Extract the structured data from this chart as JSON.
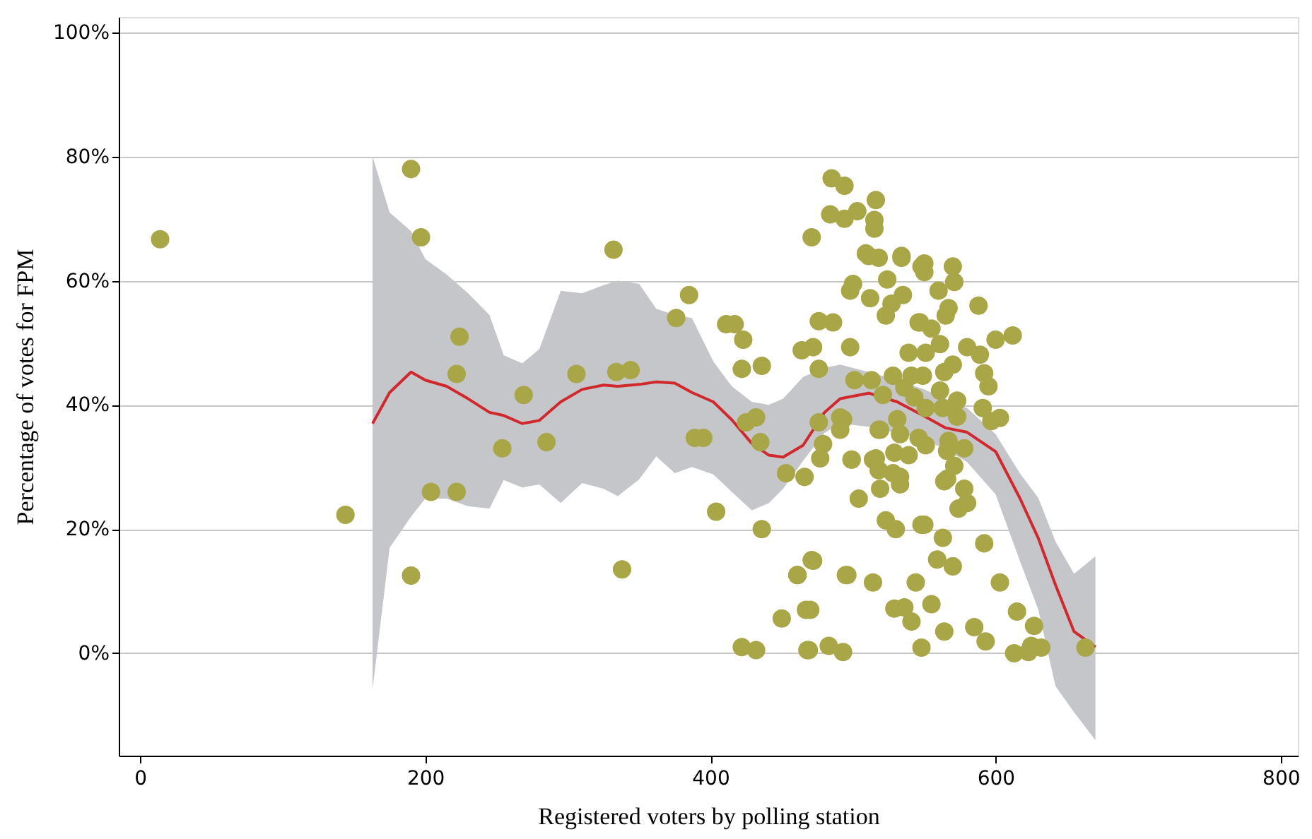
{
  "chart_data": {
    "type": "scatter",
    "xlabel": "Registered voters by polling station",
    "ylabel": "Percentage of votes for FPM",
    "xlim": [
      -15,
      812
    ],
    "ylim": [
      -16.5,
      102.5
    ],
    "xticks": [
      0,
      200,
      400,
      600,
      800
    ],
    "yticks": [
      {
        "value": 0,
        "label": "0%"
      },
      {
        "value": 20,
        "label": "20%"
      },
      {
        "value": 40,
        "label": "40%"
      },
      {
        "value": 60,
        "label": "60%"
      },
      {
        "value": 80,
        "label": "80%"
      },
      {
        "value": 100,
        "label": "100%"
      }
    ],
    "grid": "y",
    "series": [
      {
        "type": "line",
        "color": "#d0282c",
        "line_style": "solid",
        "x": [
          163,
          175,
          190,
          200,
          215,
          230,
          245,
          255,
          268,
          280,
          295,
          310,
          325,
          335,
          350,
          362,
          375,
          387,
          402,
          415,
          429,
          441,
          451,
          465,
          480,
          491,
          511,
          531,
          550,
          565,
          580,
          600,
          617,
          630,
          642,
          655,
          670
        ],
        "values": [
          37,
          42,
          45.3,
          44,
          43,
          41,
          38.8,
          38.3,
          37,
          37.5,
          40.5,
          42.5,
          43.2,
          43,
          43.3,
          43.7,
          43.5,
          42,
          40.5,
          37.6,
          33.8,
          31.9,
          31.6,
          33.5,
          38.8,
          41,
          41.9,
          40.5,
          38.2,
          36.3,
          35.6,
          32.5,
          25,
          18.5,
          11,
          3.5,
          1
        ],
        "lower": [
          -5.8,
          17,
          22,
          24.9,
          24.9,
          23.7,
          23.3,
          27.9,
          26.7,
          27.2,
          24.2,
          27.4,
          26.5,
          25.3,
          28,
          31.7,
          29,
          30,
          28.8,
          26,
          23,
          24.2,
          26.5,
          31,
          35.5,
          37,
          36.5,
          35.5,
          34.5,
          32.8,
          30.8,
          25.6,
          14.9,
          7,
          -5.3,
          -9.5,
          -14
        ],
        "upper": [
          80,
          71,
          68,
          63.5,
          61,
          58,
          54.5,
          48,
          46.7,
          49,
          58.4,
          58,
          59.3,
          60,
          59.5,
          55.5,
          54.5,
          54,
          47,
          43,
          40.5,
          40,
          41,
          44.5,
          46,
          46.5,
          45.3,
          44,
          42.5,
          41,
          39.5,
          35.3,
          29,
          25,
          18,
          12.8,
          15.6
        ]
      },
      {
        "color": "#a8a646",
        "marker": "circle",
        "x": [
          14,
          144,
          190,
          197,
          190,
          204,
          224,
          222,
          222,
          254,
          269,
          285,
          306,
          332,
          334,
          344,
          338,
          376,
          385,
          389,
          395,
          404,
          411,
          417,
          423,
          422,
          436,
          425,
          432,
          436,
          422,
          432,
          450,
          461,
          467,
          469,
          471,
          466,
          471,
          453,
          485,
          494,
          484,
          494,
          503,
          516,
          515,
          515,
          509,
          518,
          534,
          500,
          498,
          512,
          524,
          535,
          527,
          523,
          546,
          476,
          486,
          464,
          472,
          498,
          476,
          539,
          548,
          435,
          477,
          479,
          476,
          491,
          491,
          499,
          518,
          516,
          518,
          533,
          504,
          519,
          523,
          530,
          548,
          472,
          461,
          495,
          514,
          544,
          470,
          529,
          536,
          541,
          468,
          483,
          493,
          548,
          511,
          534,
          550,
          550,
          570,
          571,
          560,
          567,
          565,
          588,
          547,
          555,
          551,
          561,
          580,
          589,
          600,
          612,
          570,
          564,
          592,
          595,
          501,
          513,
          528,
          541,
          549,
          536,
          561,
          521,
          543,
          573,
          551,
          563,
          591,
          603,
          597,
          493,
          531,
          573,
          519,
          533,
          546,
          551,
          567,
          578,
          499,
          514,
          529,
          539,
          566,
          571,
          528,
          566,
          533,
          564,
          578,
          574,
          580,
          550,
          563,
          592,
          559,
          570,
          496,
          603,
          555,
          564,
          585,
          593,
          615,
          627,
          613,
          623,
          632,
          663,
          625
        ],
        "values": [
          66.7,
          22.3,
          78,
          67,
          12.5,
          26,
          51,
          45,
          26,
          33,
          41.6,
          34,
          45,
          65,
          45.3,
          45.6,
          13.5,
          54,
          57.7,
          34.7,
          34.7,
          22.8,
          53,
          53,
          50.5,
          45.8,
          46.3,
          37.2,
          38,
          20,
          1,
          0.5,
          5.6,
          12.6,
          7,
          0.5,
          15,
          28.4,
          67,
          29,
          76.5,
          75.3,
          70.7,
          70,
          71.2,
          73,
          69.8,
          68.4,
          64.4,
          63.7,
          64,
          59.5,
          58.4,
          57.2,
          60.2,
          57.7,
          56.3,
          54.4,
          53.3,
          53.5,
          53.3,
          48.8,
          49.3,
          49.3,
          45.8,
          48.4,
          62.3,
          34,
          31.4,
          33.7,
          37.2,
          36,
          38,
          31.2,
          36,
          31.4,
          29.5,
          28.4,
          24.9,
          26.5,
          21.4,
          20,
          20.7,
          14.9,
          12.6,
          12.6,
          11.4,
          11.4,
          7,
          7.2,
          7.4,
          5.1,
          0.5,
          1.2,
          0.2,
          0.9,
          64,
          63.7,
          62.8,
          61.4,
          62.3,
          59.8,
          58.4,
          55.6,
          54.4,
          56,
          53.3,
          52.3,
          48.4,
          49.8,
          49.3,
          48.1,
          50.5,
          51.2,
          46.5,
          45.3,
          45.1,
          43,
          44,
          44,
          44.7,
          44.7,
          44.7,
          42.8,
          42.3,
          41.6,
          41.2,
          40.7,
          39.5,
          39.5,
          39.5,
          37.9,
          37.4,
          37.7,
          37.7,
          38.1,
          36,
          35.3,
          34.7,
          33.5,
          34.2,
          33,
          31.2,
          31.2,
          32.3,
          31.9,
          32.6,
          30.2,
          29,
          28.1,
          27.2,
          27.7,
          26.5,
          23.3,
          24.2,
          20.7,
          18.6,
          17.7,
          15.1,
          14,
          12.6,
          11.4,
          7.9,
          3.5,
          4.2,
          1.9,
          6.7,
          4.4,
          0,
          0.2,
          0.9,
          0.9,
          1.2
        ]
      }
    ]
  }
}
